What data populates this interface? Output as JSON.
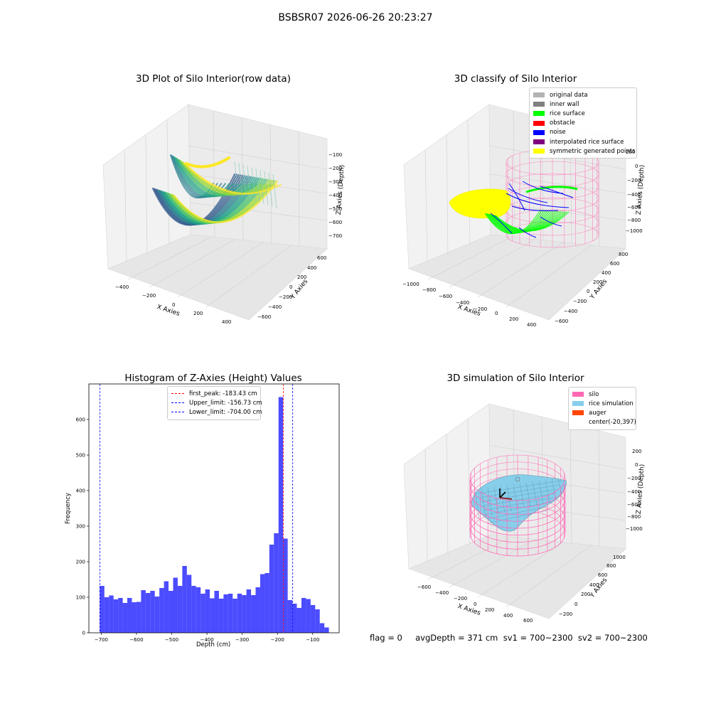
{
  "page": {
    "suptitle": "BSBSR07 2026-06-26 20:23:27",
    "status_text": "flag = 0     avgDepth = 371 cm  sv1 = 700~2300  sv2 = 700~2300"
  },
  "colors": {
    "histogram_bar": "#0000ff",
    "first_peak_line": "#ff0000",
    "limit_lines": "#0000ff",
    "silo_wireframe": "#ff69b4",
    "rice_simulation": "#87ceeb",
    "auger": "#ff4500",
    "rice_surface": "#00ff00",
    "noise": "#0000ff",
    "symmetric_points": "#ffff00"
  },
  "plot1": {
    "title": "3D Plot of Silo Interior(row data)",
    "xlabel": "X Axies",
    "ylabel": "Y Axies",
    "zlabel": "Z Axies (Depth)",
    "xticks": [
      "−400",
      "−200",
      "0",
      "200",
      "400"
    ],
    "yticks": [
      "−600",
      "−400",
      "−200",
      "0",
      "200",
      "400",
      "600"
    ],
    "zticks": [
      "−100",
      "−200",
      "−300",
      "−400",
      "−500",
      "−600",
      "−700"
    ],
    "colormap": "viridis"
  },
  "plot2": {
    "title": "3D classify of Silo Interior",
    "xlabel": "X Axies",
    "ylabel": "Y Axies",
    "zlabel": "Z Axies (Depth)",
    "xticks": [
      "−1000",
      "−800",
      "−600",
      "−400",
      "−200",
      "0",
      "200",
      "400"
    ],
    "yticks": [
      "−600",
      "−400",
      "−200",
      "0",
      "200",
      "400",
      "600",
      "800"
    ],
    "zticks": [
      "200",
      "0",
      "−200",
      "−400",
      "−600",
      "−800",
      "−1000"
    ],
    "legend": [
      {
        "label": "original data",
        "color": "#b3b3b3"
      },
      {
        "label": "inner wall",
        "color": "#808080"
      },
      {
        "label": "rice surface",
        "color": "#00ff00"
      },
      {
        "label": "obstacle",
        "color": "#ff0000"
      },
      {
        "label": "noise",
        "color": "#0000ff"
      },
      {
        "label": "interpolated rice surface",
        "color": "#800080"
      },
      {
        "label": "symmetric generated points",
        "color": "#ffff00"
      }
    ]
  },
  "plot4": {
    "title": "3D simulation of Silo Interior",
    "xlabel": "X Axies",
    "ylabel": "Y Axies",
    "zlabel": "Z Axies (Depth)",
    "xticks": [
      "−600",
      "−400",
      "−200",
      "0",
      "200",
      "400",
      "600"
    ],
    "yticks": [
      "−200",
      "0",
      "200",
      "400",
      "600",
      "800",
      "1000"
    ],
    "zticks": [
      "200",
      "0",
      "−200",
      "−400",
      "−600",
      "−800",
      "−1000"
    ],
    "legend": [
      {
        "label": "silo",
        "color": "#ff69b4"
      },
      {
        "label": "rice simulation",
        "color": "#87ceeb"
      },
      {
        "label": "auger",
        "color": "#ff4500"
      },
      {
        "label": "center(-20,397)",
        "color": ""
      }
    ]
  },
  "chart_data": {
    "type": "bar",
    "title": "Histogram of Z-Axies (Height) Values",
    "xlabel": "Depth (cm)",
    "ylabel": "Frequency",
    "xlim": [
      -735,
      -25
    ],
    "ylim": [
      0,
      700
    ],
    "xticks": [
      -700,
      -600,
      -500,
      -400,
      -300,
      -200,
      -100
    ],
    "xtick_labels": [
      "−700",
      "−600",
      "−500",
      "−400",
      "−300",
      "−200",
      "−100"
    ],
    "yticks": [
      0,
      100,
      200,
      300,
      400,
      500,
      600
    ],
    "yticks_labels": [
      "0",
      "100",
      "200",
      "300",
      "400",
      "500",
      "600"
    ],
    "bin_start": -704,
    "bin_width": 13,
    "values": [
      132,
      100,
      105,
      94,
      98,
      84,
      98,
      86,
      87,
      120,
      112,
      118,
      102,
      126,
      145,
      118,
      155,
      132,
      188,
      163,
      132,
      128,
      110,
      122,
      97,
      118,
      96,
      108,
      110,
      96,
      110,
      106,
      122,
      106,
      128,
      165,
      168,
      248,
      280,
      663,
      265,
      92,
      82,
      70,
      98,
      95,
      78,
      66,
      27,
      15
    ],
    "vlines": [
      {
        "label": "first_peak: -183.43 cm",
        "x": -183.43,
        "color": "#ff0000"
      },
      {
        "label": "Upper_limit: -156.73 cm",
        "x": -156.73,
        "color": "#0000ff"
      },
      {
        "label": "Lower_limit: -704.00 cm",
        "x": -704.0,
        "color": "#0000ff"
      }
    ],
    "legend_position": "top-center",
    "grid": false
  }
}
